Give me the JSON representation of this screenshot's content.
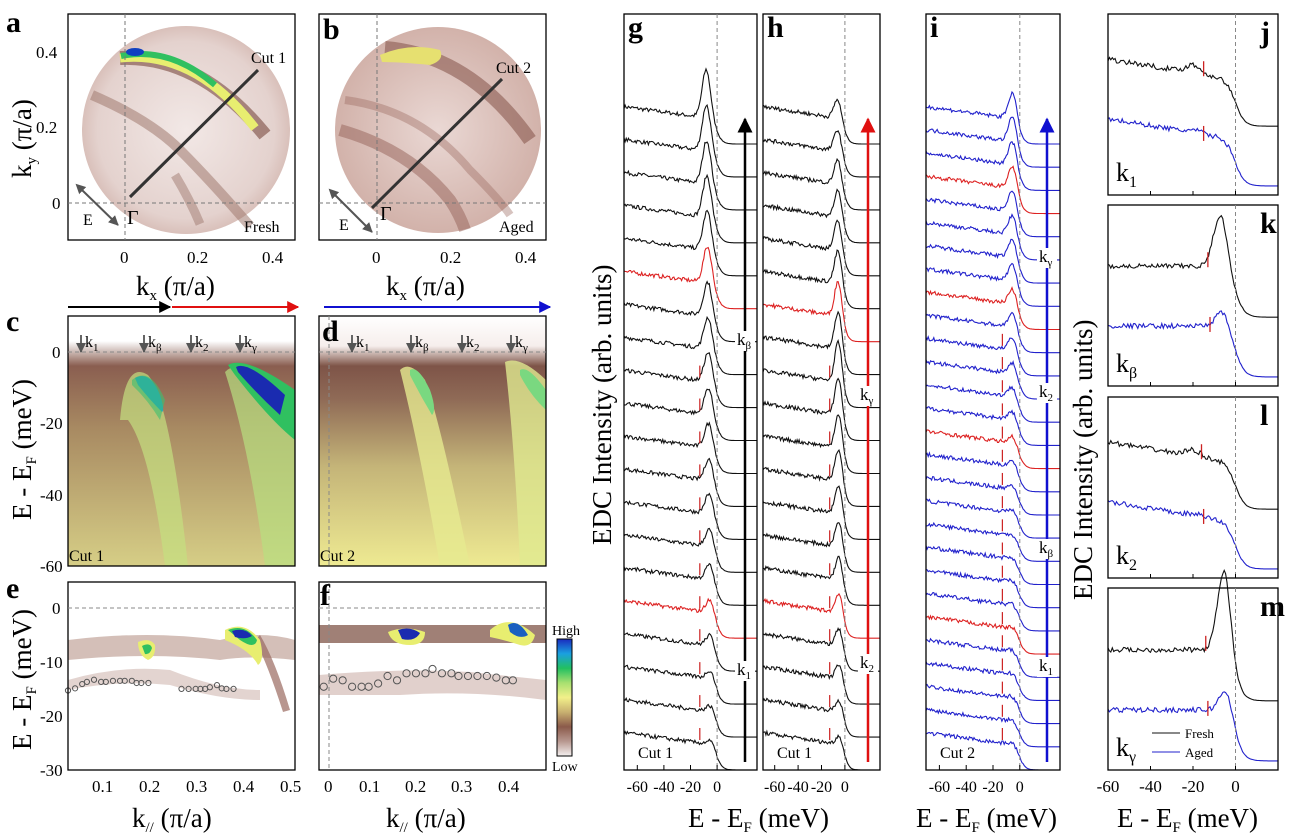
{
  "figure": {
    "panels": {
      "a": {
        "letter": "a",
        "sample": "Fresh",
        "cut": "Cut 1",
        "gamma": "Γ",
        "pol": "E"
      },
      "b": {
        "letter": "b",
        "sample": "Aged",
        "cut": "Cut 2",
        "gamma": "Γ",
        "pol": "E"
      },
      "c": {
        "letter": "c",
        "cut": "Cut 1"
      },
      "d": {
        "letter": "d",
        "cut": "Cut 2"
      },
      "e": {
        "letter": "e"
      },
      "f": {
        "letter": "f"
      },
      "g": {
        "letter": "g",
        "cut": "Cut 1"
      },
      "h": {
        "letter": "h",
        "cut": "Cut 1"
      },
      "i": {
        "letter": "i",
        "cut": "Cut 2"
      },
      "j": {
        "letter": "j",
        "k": "k1"
      },
      "k": {
        "letter": "k",
        "k": "kβ"
      },
      "l": {
        "letter": "l",
        "k": "k2"
      },
      "m": {
        "letter": "m",
        "k": "kγ"
      }
    },
    "k_markers": [
      "k1",
      "kβ",
      "k2",
      "kγ"
    ],
    "colorbar": {
      "high": "High",
      "low": "Low",
      "stops": [
        "#1a2bbf",
        "#1aa0e0",
        "#22c060",
        "#a8e070",
        "#f2f08a",
        "#c8b070",
        "#8b5a4a",
        "#b89890",
        "#f4f0f0"
      ]
    },
    "colors": {
      "fresh": "#111111",
      "aged": "#2222cc",
      "highlight": "#dd2222",
      "peak_mark": "#cc2222",
      "arrow_black": "#000000",
      "arrow_red": "#e01010",
      "arrow_blue": "#1010d0"
    },
    "legend": {
      "fresh": "Fresh",
      "aged": "Aged"
    }
  },
  "chart_data": [
    {
      "panel": "a",
      "type": "heatmap",
      "title": "Fermi surface (Fresh)",
      "xlabel": "kx (π/a)",
      "ylabel": "ky (π/a)",
      "xlim": [
        -0.15,
        0.45
      ],
      "ylim": [
        -0.1,
        0.5
      ],
      "xticks": [
        "0",
        "0.2",
        "0.4"
      ],
      "yticks": [
        "0",
        "0.2",
        "0.4"
      ],
      "annotations": [
        "Cut 1",
        "Fresh",
        "Γ",
        "E"
      ],
      "cut_line": {
        "from": [
          0.02,
          0.01
        ],
        "to": [
          0.35,
          0.35
        ]
      }
    },
    {
      "panel": "b",
      "type": "heatmap",
      "title": "Fermi surface (Aged)",
      "xlabel": "kx (π/a)",
      "ylabel": "",
      "xlim": [
        -0.15,
        0.45
      ],
      "ylim": [
        -0.1,
        0.5
      ],
      "xticks": [
        "0",
        "0.2",
        "0.4"
      ],
      "annotations": [
        "Cut 2",
        "Aged",
        "Γ",
        "E"
      ],
      "cut_line": {
        "from": [
          -0.01,
          -0.01
        ],
        "to": [
          0.33,
          0.33
        ]
      }
    },
    {
      "panel": "c",
      "type": "heatmap",
      "ylabel": "E - EF (meV)",
      "ylim": [
        -60,
        10
      ],
      "yticks": [
        "0",
        "-20",
        "-40",
        "-60"
      ],
      "annotations": [
        "Cut 1",
        "k1",
        "kβ",
        "k2",
        "kγ"
      ]
    },
    {
      "panel": "d",
      "type": "heatmap",
      "ylim": [
        -60,
        10
      ],
      "annotations": [
        "Cut 2",
        "k1",
        "kβ",
        "k2",
        "kγ"
      ]
    },
    {
      "panel": "e",
      "type": "heatmap",
      "xlabel": "k// (π/a)",
      "ylabel": "E - EF (meV)",
      "xlim": [
        0.02,
        0.5
      ],
      "ylim": [
        -30,
        5
      ],
      "xticks": [
        "0.1",
        "0.2",
        "0.3",
        "0.4",
        "0.5"
      ],
      "yticks": [
        "0",
        "-10",
        "-20",
        "-30"
      ],
      "scatter": {
        "x": [
          0.02,
          0.035,
          0.05,
          0.06,
          0.075,
          0.09,
          0.1,
          0.115,
          0.13,
          0.14,
          0.155,
          0.165,
          0.175,
          0.19,
          0.26,
          0.275,
          0.29,
          0.3,
          0.31,
          0.32,
          0.335,
          0.345,
          0.355,
          0.37
        ],
        "y": [
          -15.2,
          -14.8,
          -14.0,
          -13.6,
          -13.2,
          -13.6,
          -13.6,
          -13.4,
          -13.4,
          -13.4,
          -13.4,
          -13.8,
          -13.8,
          -13.8,
          -14.9,
          -14.9,
          -14.9,
          -14.9,
          -14.9,
          -14.6,
          -14.2,
          -14.8,
          -14.9,
          -14.9
        ]
      }
    },
    {
      "panel": "f",
      "type": "heatmap",
      "xlabel": "k// (π/a)",
      "xlim": [
        -0.02,
        0.46
      ],
      "ylim": [
        -30,
        5
      ],
      "xticks": [
        "0",
        "0.1",
        "0.2",
        "0.3",
        "0.4"
      ],
      "scatter": {
        "x": [
          -0.01,
          0.01,
          0.03,
          0.05,
          0.07,
          0.085,
          0.105,
          0.125,
          0.145,
          0.165,
          0.185,
          0.205,
          0.22,
          0.24,
          0.26,
          0.275,
          0.295,
          0.315,
          0.335,
          0.355,
          0.375,
          0.39
        ],
        "y": [
          -14.5,
          -13.0,
          -13.3,
          -14.5,
          -14.5,
          -14.5,
          -13.9,
          -12.5,
          -13.3,
          -12.0,
          -12.0,
          -12.0,
          -11.2,
          -12.0,
          -12.0,
          -12.5,
          -12.5,
          -12.5,
          -12.5,
          -12.8,
          -13.3,
          -13.3
        ]
      }
    },
    {
      "panel": "g",
      "type": "line",
      "xlabel": "E - EF (meV)",
      "ylabel": "EDC Intensity (arb. units)",
      "xlim": [
        -70,
        30
      ],
      "xticks": [
        "-60",
        "-40",
        "-20",
        "0"
      ],
      "n_curves": 20,
      "highlight_indices": [
        5,
        15
      ],
      "labels": [
        "kβ",
        "k1"
      ],
      "arrow": "black"
    },
    {
      "panel": "h",
      "type": "line",
      "xlabel": "E - EF (meV)",
      "xlim": [
        -70,
        30
      ],
      "xticks": [
        "-60",
        "-40",
        "-20",
        "0"
      ],
      "n_curves": 20,
      "highlight_indices": [
        6,
        15
      ],
      "labels": [
        "kγ",
        "k2"
      ],
      "arrow": "red"
    },
    {
      "panel": "i",
      "type": "line",
      "xlabel": "E - EF (meV)",
      "xlim": [
        -70,
        30
      ],
      "xticks": [
        "-60",
        "-40",
        "-20",
        "0"
      ],
      "n_curves": 28,
      "highlight_indices": [
        3,
        8,
        14,
        22
      ],
      "labels": [
        "kγ",
        "k2",
        "kβ",
        "k1"
      ],
      "arrow": "blue"
    },
    {
      "panel": "j-m",
      "type": "line",
      "xlabel": "E - EF (meV)",
      "ylabel": "EDC Intensity (arb. units)",
      "xlim": [
        -60,
        20
      ],
      "xticks": [
        "-60",
        "-40",
        "-20",
        "0"
      ],
      "series": [
        {
          "name": "Fresh"
        },
        {
          "name": "Aged"
        }
      ],
      "subpanels": [
        "k1",
        "kβ",
        "k2",
        "kγ"
      ],
      "peak_marks_meV": {
        "k1": [
          -15,
          -15
        ],
        "kβ": [
          -13,
          -12
        ],
        "k2": [
          -16,
          -15
        ],
        "kγ": [
          -14,
          -13
        ]
      }
    }
  ]
}
